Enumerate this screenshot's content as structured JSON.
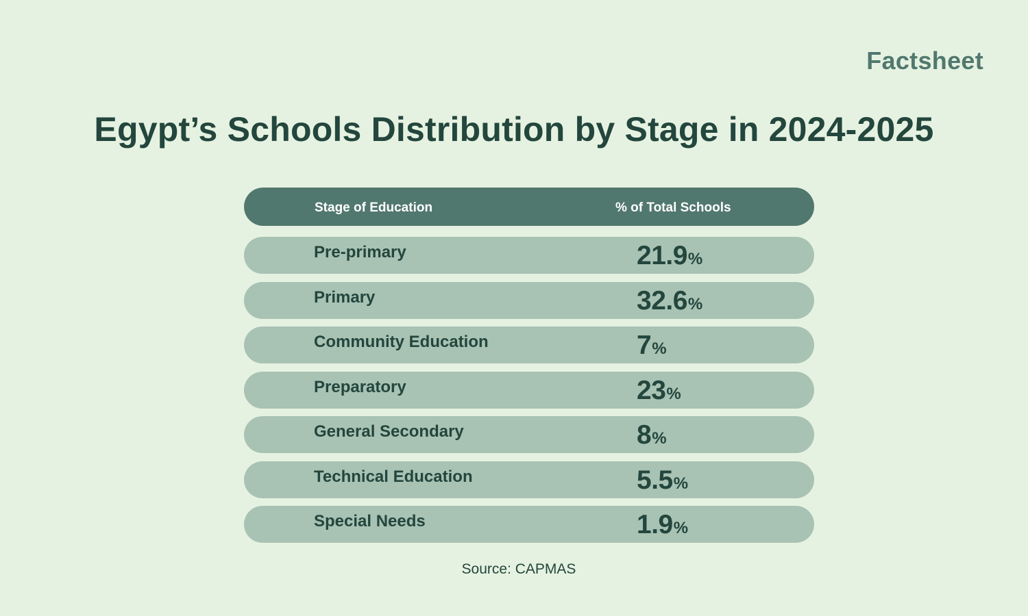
{
  "brand": "Factsheet",
  "chart_data": {
    "type": "table",
    "title": "Egypt’s Schools Distribution by Stage in 2024-2025",
    "columns": [
      "Stage of Education",
      "% of Total Schools"
    ],
    "unit": "%",
    "rows": [
      {
        "stage": "Pre-primary",
        "value": "21.9"
      },
      {
        "stage": "Primary",
        "value": "32.6"
      },
      {
        "stage": "Community Education",
        "value": "7"
      },
      {
        "stage": "Preparatory",
        "value": "23"
      },
      {
        "stage": "General Secondary",
        "value": "8"
      },
      {
        "stage": "Technical Education",
        "value": "5.5"
      },
      {
        "stage": "Special Needs",
        "value": "1.9"
      }
    ],
    "source": "Source: CAPMAS"
  },
  "colors": {
    "background": "#e6f2e1",
    "header": "#51786e",
    "row": "#a8c2b4",
    "text": "#23463d",
    "brand": "#51786e"
  }
}
